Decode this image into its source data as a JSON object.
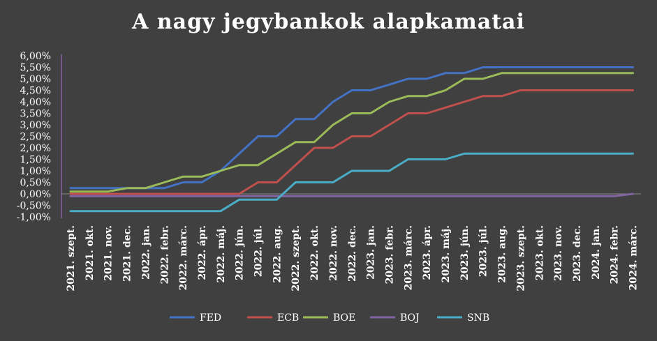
{
  "chart_data": {
    "type": "line",
    "title": "A nagy jegybankok alapkamatai",
    "xlabel": "",
    "ylabel": "",
    "ylim": [
      -1.0,
      6.0
    ],
    "y_ticks": [
      "6,00%",
      "5,50%",
      "5,00%",
      "4,50%",
      "4,00%",
      "3,50%",
      "3,00%",
      "2,50%",
      "2,00%",
      "1,50%",
      "1,00%",
      "0,50%",
      "0,00%",
      "-0,50%",
      "-1,00%"
    ],
    "y_tick_values": [
      6.0,
      5.5,
      5.0,
      4.5,
      4.0,
      3.5,
      3.0,
      2.5,
      2.0,
      1.5,
      1.0,
      0.5,
      0.0,
      -0.5,
      -1.0
    ],
    "legend_position": "bottom",
    "categories": [
      "2021. szept.",
      "2021. okt.",
      "2021. nov.",
      "2021. dec.",
      "2022. jan.",
      "2022. febr.",
      "2022. márc.",
      "2022. ápr.",
      "2022. máj.",
      "2022. jún.",
      "2022. júl.",
      "2022. aug.",
      "2022. szept.",
      "2022. okt.",
      "2022. nov.",
      "2022. dec.",
      "2023. jan.",
      "2023. febr.",
      "2023. márc.",
      "2023. ápr.",
      "2023. máj.",
      "2023. jún.",
      "2023. júl.",
      "2023. aug.",
      "2023. szept.",
      "2023. okt.",
      "2023. nov.",
      "2023. dec.",
      "2024. jan.",
      "2024. febr.",
      "2024. márc."
    ],
    "series": [
      {
        "name": "FED",
        "color": "#4472C4",
        "values": [
          0.25,
          0.25,
          0.25,
          0.25,
          0.25,
          0.25,
          0.5,
          0.5,
          1.0,
          1.75,
          2.5,
          2.5,
          3.25,
          3.25,
          4.0,
          4.5,
          4.5,
          4.75,
          5.0,
          5.0,
          5.25,
          5.25,
          5.5,
          5.5,
          5.5,
          5.5,
          5.5,
          5.5,
          5.5,
          5.5,
          5.5
        ]
      },
      {
        "name": "ECB",
        "color": "#C0504D",
        "values": [
          0.0,
          0.0,
          0.0,
          0.0,
          0.0,
          0.0,
          0.0,
          0.0,
          0.0,
          0.0,
          0.5,
          0.5,
          1.25,
          2.0,
          2.0,
          2.5,
          2.5,
          3.0,
          3.5,
          3.5,
          3.75,
          4.0,
          4.25,
          4.25,
          4.5,
          4.5,
          4.5,
          4.5,
          4.5,
          4.5,
          4.5
        ]
      },
      {
        "name": "BOE",
        "color": "#9BBB59",
        "values": [
          0.1,
          0.1,
          0.1,
          0.25,
          0.25,
          0.5,
          0.75,
          0.75,
          1.0,
          1.25,
          1.25,
          1.75,
          2.25,
          2.25,
          3.0,
          3.5,
          3.5,
          4.0,
          4.25,
          4.25,
          4.5,
          5.0,
          5.0,
          5.25,
          5.25,
          5.25,
          5.25,
          5.25,
          5.25,
          5.25,
          5.25
        ]
      },
      {
        "name": "BOJ",
        "color": "#8064A2",
        "values": [
          -0.1,
          -0.1,
          -0.1,
          -0.1,
          -0.1,
          -0.1,
          -0.1,
          -0.1,
          -0.1,
          -0.1,
          -0.1,
          -0.1,
          -0.1,
          -0.1,
          -0.1,
          -0.1,
          -0.1,
          -0.1,
          -0.1,
          -0.1,
          -0.1,
          -0.1,
          -0.1,
          -0.1,
          -0.1,
          -0.1,
          -0.1,
          -0.1,
          -0.1,
          -0.1,
          0.0
        ]
      },
      {
        "name": "SNB",
        "color": "#4BACC6",
        "values": [
          -0.75,
          -0.75,
          -0.75,
          -0.75,
          -0.75,
          -0.75,
          -0.75,
          -0.75,
          -0.75,
          -0.25,
          -0.25,
          -0.25,
          0.5,
          0.5,
          0.5,
          1.0,
          1.0,
          1.0,
          1.5,
          1.5,
          1.5,
          1.75,
          1.75,
          1.75,
          1.75,
          1.75,
          1.75,
          1.75,
          1.75,
          1.75,
          1.75
        ]
      }
    ]
  }
}
